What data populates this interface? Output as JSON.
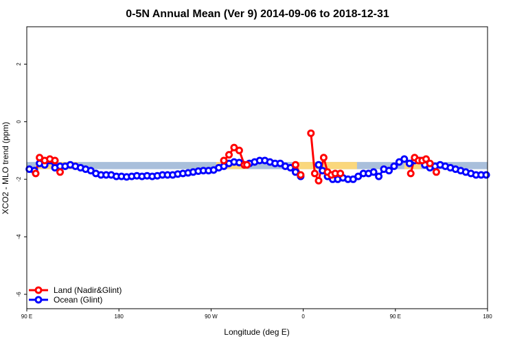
{
  "chart_data": {
    "type": "line",
    "title": "0-5N Annual Mean (Ver 9)   2014-09-06 to 2018-12-31",
    "xlabel": "Longitude (deg E)",
    "ylabel": "XCO2 - MLO trend (ppm)",
    "xlim": [
      90,
      450
    ],
    "ylim": [
      -6.5,
      3.3
    ],
    "x_ticks": [
      {
        "value": 90,
        "label": "90 E"
      },
      {
        "value": 162,
        "label": "180"
      },
      {
        "value": 234,
        "label": "90 W"
      },
      {
        "value": 306,
        "label": "0"
      },
      {
        "value": 378,
        "label": "90 E"
      },
      {
        "value": 450,
        "label": "180"
      }
    ],
    "y_ticks": [
      {
        "value": 2,
        "label": "2"
      },
      {
        "value": 0,
        "label": "0"
      },
      {
        "value": -2,
        "label": "-2"
      },
      {
        "value": -4,
        "label": "-4"
      },
      {
        "value": -6,
        "label": "-6"
      }
    ],
    "reference_band": {
      "y_min": -1.65,
      "y_max": -1.4,
      "color": "#a9bfdb"
    },
    "highlight_segments": [
      {
        "x_start": 97,
        "x_end": 130,
        "color": "#fad77c"
      },
      {
        "x_start": 238,
        "x_end": 262,
        "color": "#fad77c"
      },
      {
        "x_start": 298,
        "x_end": 318,
        "color": "#fad77c"
      },
      {
        "x_start": 318,
        "x_end": 348,
        "color": "#fad77c"
      },
      {
        "x_start": 385,
        "x_end": 398,
        "color": "#fad77c"
      }
    ],
    "series": [
      {
        "name": "Land (Nadir&Glint)",
        "color": "#ff0000",
        "segments": [
          {
            "x": [
              97,
              100,
              104,
              108,
              112,
              116
            ],
            "values": [
              -1.8,
              -1.25,
              -1.35,
              -1.3,
              -1.35,
              -1.75
            ]
          },
          {
            "x": [
              244,
              248,
              252,
              256,
              260,
              262
            ],
            "values": [
              -1.35,
              -1.15,
              -0.9,
              -1.0,
              -1.5,
              -1.5
            ]
          },
          {
            "x": [
              300,
              304
            ],
            "values": [
              -1.5,
              -1.85
            ]
          },
          {
            "x": [
              312,
              315,
              318,
              322,
              325,
              328,
              331,
              335
            ],
            "values": [
              -0.4,
              -1.8,
              -2.05,
              -1.25,
              -1.75,
              -1.85,
              -1.8,
              -1.8
            ]
          },
          {
            "x": [
              390,
              393,
              396,
              399,
              402,
              405,
              410
            ],
            "values": [
              -1.8,
              -1.25,
              -1.35,
              -1.35,
              -1.3,
              -1.45,
              -1.75
            ]
          }
        ]
      },
      {
        "name": "Ocean (Glint)",
        "color": "#0000ff",
        "segments": [
          {
            "x": [
              92,
              96,
              100,
              104,
              108,
              112,
              116,
              120,
              124,
              128,
              132,
              136,
              140,
              144,
              148,
              152,
              156,
              160,
              164,
              168,
              172,
              176,
              180,
              184,
              188,
              192,
              196,
              200,
              204,
              208,
              212,
              216,
              220,
              224,
              228,
              232,
              236,
              240,
              244,
              248,
              252,
              256,
              260,
              264,
              268,
              272,
              276,
              280,
              284,
              288,
              292,
              296,
              300,
              304
            ],
            "values": [
              -1.65,
              -1.7,
              -1.45,
              -1.5,
              -1.35,
              -1.6,
              -1.55,
              -1.55,
              -1.5,
              -1.55,
              -1.6,
              -1.65,
              -1.7,
              -1.8,
              -1.85,
              -1.85,
              -1.85,
              -1.9,
              -1.9,
              -1.92,
              -1.9,
              -1.88,
              -1.9,
              -1.88,
              -1.9,
              -1.88,
              -1.85,
              -1.85,
              -1.85,
              -1.82,
              -1.8,
              -1.78,
              -1.75,
              -1.72,
              -1.7,
              -1.7,
              -1.68,
              -1.6,
              -1.55,
              -1.45,
              -1.4,
              -1.42,
              -1.5,
              -1.45,
              -1.4,
              -1.35,
              -1.35,
              -1.4,
              -1.45,
              -1.45,
              -1.55,
              -1.6,
              -1.75,
              -1.9
            ]
          }
        ]
      }
    ],
    "ocean_tail": {
      "x": [
        318,
        321,
        325,
        329,
        333,
        337,
        341,
        345,
        349,
        353,
        357,
        361,
        365,
        369,
        373,
        377,
        381,
        385,
        389,
        393,
        397,
        401,
        405,
        409,
        413,
        417,
        421,
        425,
        429,
        433,
        437,
        441,
        445,
        449
      ],
      "values": [
        -1.5,
        -1.7,
        -1.9,
        -2.0,
        -2.0,
        -1.95,
        -2.0,
        -2.0,
        -1.9,
        -1.8,
        -1.8,
        -1.75,
        -1.9,
        -1.65,
        -1.7,
        -1.55,
        -1.4,
        -1.3,
        -1.45,
        -1.35,
        -1.35,
        -1.5,
        -1.6,
        -1.55,
        -1.5,
        -1.55,
        -1.6,
        -1.65,
        -1.7,
        -1.75,
        -1.8,
        -1.85,
        -1.85,
        -1.85
      ]
    },
    "legend": {
      "position": "bottom-left",
      "entries": [
        {
          "label": "Land (Nadir&Glint)",
          "color": "#ff0000"
        },
        {
          "label": "Ocean (Glint)",
          "color": "#0000ff"
        }
      ]
    }
  }
}
